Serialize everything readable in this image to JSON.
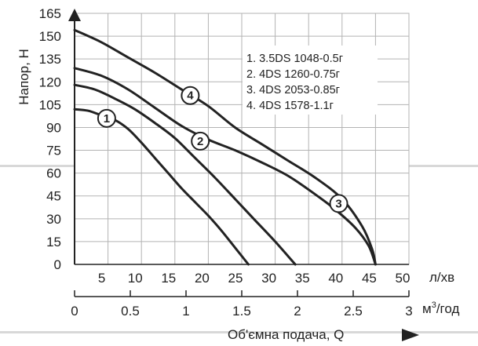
{
  "chart_data": {
    "type": "line",
    "ylabel": "Напор, Н",
    "xlabel": "Об'ємна подача, Q",
    "x_unit": "л/хв",
    "x2_unit": "м³/год",
    "x2_unit_base": "м",
    "x2_unit_sup": "3",
    "x2_unit_rest": "/год",
    "ylim": [
      0,
      165
    ],
    "xlim": [
      0,
      50
    ],
    "x2lim": [
      0,
      3
    ],
    "y_ticks": [
      0,
      15,
      30,
      45,
      60,
      75,
      90,
      105,
      120,
      135,
      150,
      165
    ],
    "x_ticks": [
      5,
      10,
      15,
      20,
      25,
      30,
      35,
      40,
      45,
      50
    ],
    "x2_ticks": [
      "0",
      "0.5",
      "1",
      "1.5",
      "2",
      "2.5",
      "3"
    ],
    "grid": true,
    "legend_position": "top-right",
    "legend": [
      "1. 3.5DS 1048-0.5г",
      "2. 4DS 1260-0.75г",
      "3. 4DS 2053-0.85г",
      "4. 4DS 1578-1.1г"
    ],
    "series": [
      {
        "id": "1",
        "name": "3.5DS 1048-0.5г",
        "x": [
          0,
          2,
          4,
          6,
          8,
          10,
          12,
          14,
          16,
          18,
          20,
          22,
          24,
          26
        ],
        "values": [
          102,
          101,
          98,
          95,
          89,
          80,
          70,
          60,
          50,
          41,
          32,
          22,
          11,
          0
        ],
        "label_at": [
          4.8,
          96
        ]
      },
      {
        "id": "2",
        "name": "4DS 1260-0.75г",
        "x": [
          0,
          3,
          6,
          9,
          12,
          15,
          18,
          21,
          24,
          27,
          30,
          33
        ],
        "values": [
          118,
          115,
          109,
          102,
          93,
          83,
          70,
          57,
          43,
          29,
          15,
          0
        ],
        "label_at": [
          18.8,
          81
        ]
      },
      {
        "id": "3",
        "name": "4DS 2053-0.85г",
        "x": [
          0,
          4,
          8,
          12,
          16,
          20,
          24,
          28,
          32,
          36,
          39,
          42,
          44,
          45
        ],
        "values": [
          129,
          124,
          115,
          103,
          91,
          82,
          75,
          67,
          58,
          46,
          36,
          24,
          12,
          0
        ],
        "label_at": [
          39.5,
          40
        ]
      },
      {
        "id": "4",
        "name": "4DS 1578-1.1г",
        "x": [
          0,
          4,
          8,
          12,
          16,
          20,
          24,
          28,
          32,
          36,
          40,
          43,
          44.5,
          45
        ],
        "values": [
          154,
          146,
          136,
          126,
          115,
          104,
          90,
          79,
          68,
          57,
          43,
          25,
          10,
          0
        ],
        "label_at": [
          17.3,
          111
        ]
      }
    ]
  }
}
